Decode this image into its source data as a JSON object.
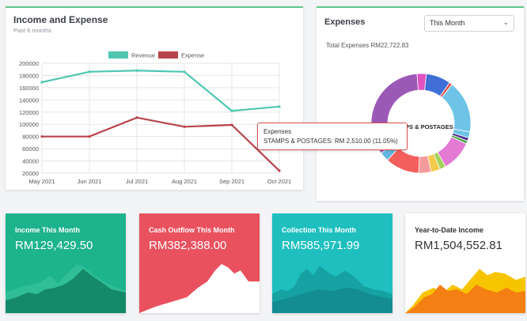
{
  "income_expense": {
    "title": "Income and Expense",
    "subtitle": "Past 6 months"
  },
  "chart_data": {
    "type": "line",
    "categories": [
      "May 2021",
      "Jun 2021",
      "Jul 2021",
      "Aug 2021",
      "Sep 2021",
      "Oct 2021"
    ],
    "series": [
      {
        "name": "Revenue",
        "color": "#4fc7b2",
        "values": [
          169000,
          186000,
          188000,
          186000,
          122000,
          129000
        ]
      },
      {
        "name": "Expense",
        "color": "#b9434a",
        "values": [
          80000,
          80000,
          111000,
          96000,
          99000,
          24000
        ]
      }
    ],
    "ylim": [
      20000,
      200000
    ],
    "yticks": [
      "200000",
      "180000",
      "160000",
      "140000",
      "120000",
      "100000",
      "80000",
      "60000",
      "40000",
      "20000"
    ],
    "legend": "top-center",
    "grid": true
  },
  "expenses": {
    "title": "Expenses",
    "period_selected": "This Month",
    "total_text": "Total Expenses RM22,722.83",
    "center_label": "STAMPS & POSTAGES",
    "tooltip": {
      "title": "Expenses",
      "body": "STAMPS & POSTAGES: RM 2,510.00 (11.05%)"
    },
    "donut_colors": [
      "#e052c0",
      "#3f6fd6",
      "#d9534f",
      "#6ec4e6",
      "#6ec4e6",
      "#4a2b89",
      "#56a94b",
      "#e37bd4",
      "#a3d25a",
      "#f2c94c",
      "#f39a9a",
      "#f25f5c",
      "#63b6e0",
      "#9b59b6"
    ]
  },
  "stats": [
    {
      "label": "Income This Month",
      "value": "RM129,429.50",
      "bg": "#1db38c",
      "fg": "#ffffff"
    },
    {
      "label": "Cash Outflow This Month",
      "value": "RM382,388.00",
      "bg": "#e9515f",
      "fg": "#ffffff"
    },
    {
      "label": "Collection This Month",
      "value": "RM585,971.99",
      "bg": "#1fbfbf",
      "fg": "#ffffff"
    },
    {
      "label": "Year-to-Date Income",
      "value": "RM1,504,552.81",
      "bg": "#ffffff",
      "fg": "#333333"
    }
  ]
}
